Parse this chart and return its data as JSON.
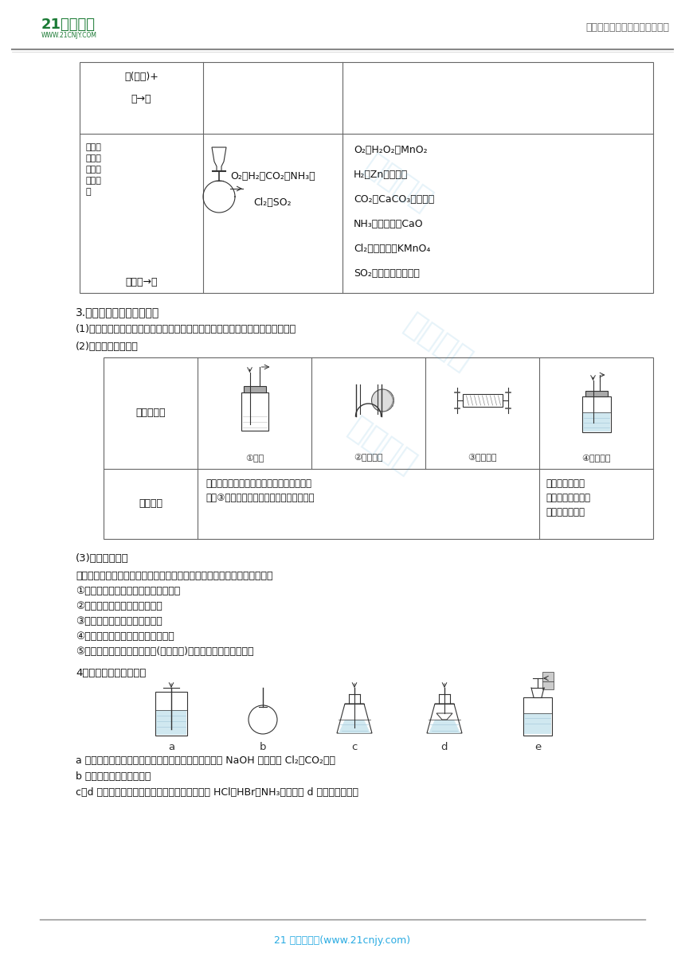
{
  "bg_color": "#ffffff",
  "header_text_right": "中小学教育资源及组卷应用平台",
  "footer_text": "21 世纪教育网(www.21cnjy.com)",
  "footer_color": "#29abe2",
  "section3_title": "3.气体的净化（干燥）装置",
  "section3_sub1": "(1)设计原则：根据主要气体及杂质气体的性质差异来选择除杂试剂及除杂装置。",
  "section3_sub2": "(2)除杂装置基本类型",
  "table2_device_labels": [
    "①洗气",
    "②固体除杂",
    "③固体除杂",
    "④冷凝除杂"
  ],
  "table2_scope_left1": "试剂与杂质气体反应，与主要气体不反应；",
  "table2_scope_left2": "装置③用固体吸收还原性或氧化性杂质气体",
  "table2_scope_right1": "杂质气体被冷却",
  "table2_scope_right2": "后变为液体，主要",
  "table2_scope_right3": "气体不变为液体",
  "section3_sub3_title": "(3)吸收剂的选择",
  "section3_sub3_line0": "选择吸收剂应根据被提纯气体的性质和杂质的性质而确定，一般情况如下：",
  "section3_sub3_line1": "①易溶于水的气体杂质可用水来吸收；",
  "section3_sub3_line2": "②酸性杂质可用碱性物质吸收；",
  "section3_sub3_line3": "③碱性杂质可用酸性物质吸收；",
  "section3_sub3_line4": "④水为杂质时，可用干燥剂来吸收；",
  "section3_sub3_line5": "⑤能与杂质发生反应生成沉淀(或可溶物)的物质也可作为吸收剂。",
  "section4_title": "4．尾气处理装置的选择",
  "section4_desc1": "a 装置用于吸收溶解或反应速率不是很快的气体，如用 NaOH 溶液吸收 Cl₂、CO₂等。",
  "section4_desc2": "b 装置用于收集少量气体。",
  "section4_desc3": "c、d 装置用于吸收极易溶且溶解得快的气体，如 HCl、HBr、NH₃等；其中 d 装置吸收量少。",
  "t1_r1c1_line1": "固(块状)+",
  "t1_r1c1_line2": "液→气",
  "t1_r2c1_label1": "用于控",
  "t1_r2c1_label2": "制滴加",
  "t1_r2c1_label3": "速度或",
  "t1_r2c1_label4": "液体的",
  "t1_r2c1_label5": "量",
  "t1_r2c1_bottom": "固＋液→气",
  "t1_r2c2_line1": "O₂、H₂、CO₂、NH₃、",
  "t1_r2c2_line2": "Cl₂、SO₂",
  "t1_r2c3_lines": [
    "O₂：H₂O₂与MnO₂",
    "H₂：Zn与稀硫酸",
    "CO₂：CaCO₃与稀盐酸",
    "NH₃：浓氨水与CaO",
    "Cl₂：浓盐酸与KMnO₄",
    "SO₂：亚硫酸钠与硫酸"
  ],
  "t2_label_col1": "装置示意图",
  "t2_label_col2": "适用范围",
  "dev4_labels": [
    "a",
    "b",
    "c",
    "d",
    "e"
  ],
  "header21": "21世纪教育",
  "headerurl": "WWW.21CNJY.COM"
}
